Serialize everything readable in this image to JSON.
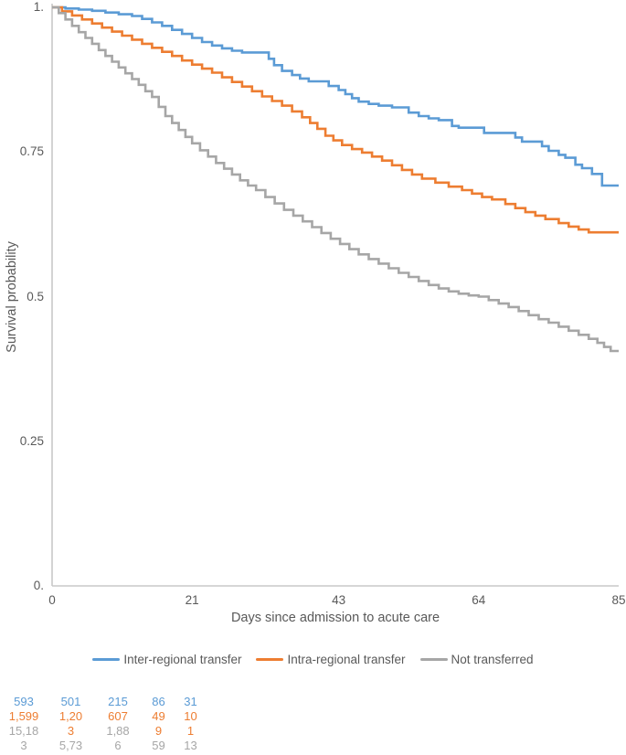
{
  "colors": {
    "blue": "#5B9BD5",
    "orange": "#ED7D31",
    "gray": "#A6A6A6",
    "axis_line": "#C8C8C8",
    "text": "#595959"
  },
  "chart_data": {
    "type": "line",
    "subtype": "kaplan-meier-step",
    "xlabel": "Days since admission to acute care",
    "ylabel": "Survival probability",
    "xlim": [
      0,
      85
    ],
    "ylim": [
      0,
      1
    ],
    "grid": false,
    "legend_position": "bottom",
    "x_ticks": [
      {
        "value": 0,
        "label": "0"
      },
      {
        "value": 21,
        "label": "21"
      },
      {
        "value": 43,
        "label": "43"
      },
      {
        "value": 64,
        "label": "64"
      },
      {
        "value": 85,
        "label": "85"
      }
    ],
    "y_ticks": [
      {
        "value": 1,
        "label": "1."
      },
      {
        "value": 0.75,
        "label": "0.75"
      },
      {
        "value": 0.5,
        "label": "0.5"
      },
      {
        "value": 0.25,
        "label": "0.25"
      },
      {
        "value": 0,
        "label": "0."
      }
    ],
    "series": [
      {
        "name": "Inter-regional transfer",
        "color_key": "blue",
        "steps": [
          [
            0,
            1.0
          ],
          [
            2,
            0.998
          ],
          [
            4,
            0.996
          ],
          [
            6,
            0.994
          ],
          [
            8,
            0.991
          ],
          [
            10,
            0.988
          ],
          [
            12,
            0.985
          ],
          [
            13.5,
            0.98
          ],
          [
            15,
            0.974
          ],
          [
            16.5,
            0.968
          ],
          [
            18,
            0.961
          ],
          [
            19.5,
            0.954
          ],
          [
            21,
            0.947
          ],
          [
            22.5,
            0.94
          ],
          [
            24,
            0.934
          ],
          [
            25.5,
            0.929
          ],
          [
            27,
            0.925
          ],
          [
            28.5,
            0.922
          ],
          [
            32.5,
            0.911
          ],
          [
            33.3,
            0.9
          ],
          [
            34.5,
            0.89
          ],
          [
            36,
            0.883
          ],
          [
            37.2,
            0.877
          ],
          [
            38.5,
            0.872
          ],
          [
            41.5,
            0.864
          ],
          [
            43,
            0.857
          ],
          [
            44,
            0.85
          ],
          [
            45,
            0.843
          ],
          [
            46,
            0.837
          ],
          [
            47.5,
            0.833
          ],
          [
            49,
            0.83
          ],
          [
            51,
            0.827
          ],
          [
            53.5,
            0.818
          ],
          [
            55,
            0.812
          ],
          [
            56.5,
            0.808
          ],
          [
            58,
            0.805
          ],
          [
            60,
            0.795
          ],
          [
            61,
            0.792
          ],
          [
            64.8,
            0.783
          ],
          [
            69.5,
            0.775
          ],
          [
            70.5,
            0.768
          ],
          [
            73.5,
            0.76
          ],
          [
            74.5,
            0.752
          ],
          [
            76,
            0.745
          ],
          [
            77,
            0.74
          ],
          [
            78.5,
            0.728
          ],
          [
            79.5,
            0.722
          ],
          [
            81,
            0.712
          ],
          [
            82.5,
            0.692
          ]
        ]
      },
      {
        "name": "Intra-regional transfer",
        "color_key": "orange",
        "steps": [
          [
            0,
            1.0
          ],
          [
            1.5,
            0.993
          ],
          [
            3,
            0.986
          ],
          [
            4.5,
            0.979
          ],
          [
            6,
            0.972
          ],
          [
            7.5,
            0.965
          ],
          [
            9,
            0.958
          ],
          [
            10.5,
            0.951
          ],
          [
            12,
            0.944
          ],
          [
            13.5,
            0.937
          ],
          [
            15,
            0.93
          ],
          [
            16.5,
            0.923
          ],
          [
            18,
            0.916
          ],
          [
            19.5,
            0.908
          ],
          [
            21,
            0.901
          ],
          [
            22.5,
            0.894
          ],
          [
            24,
            0.887
          ],
          [
            25.5,
            0.879
          ],
          [
            27,
            0.871
          ],
          [
            28.5,
            0.863
          ],
          [
            30,
            0.855
          ],
          [
            31.5,
            0.846
          ],
          [
            33,
            0.838
          ],
          [
            34.5,
            0.83
          ],
          [
            36,
            0.82
          ],
          [
            37.5,
            0.81
          ],
          [
            38.7,
            0.8
          ],
          [
            39.8,
            0.79
          ],
          [
            41,
            0.778
          ],
          [
            42.2,
            0.77
          ],
          [
            43.5,
            0.762
          ],
          [
            45,
            0.755
          ],
          [
            46.5,
            0.749
          ],
          [
            48,
            0.742
          ],
          [
            49.5,
            0.735
          ],
          [
            51,
            0.727
          ],
          [
            52.5,
            0.719
          ],
          [
            54,
            0.711
          ],
          [
            55.5,
            0.704
          ],
          [
            57.5,
            0.697
          ],
          [
            59.5,
            0.69
          ],
          [
            61.5,
            0.684
          ],
          [
            63,
            0.678
          ],
          [
            64.5,
            0.672
          ],
          [
            66,
            0.668
          ],
          [
            68,
            0.66
          ],
          [
            69.5,
            0.653
          ],
          [
            71,
            0.646
          ],
          [
            72.5,
            0.64
          ],
          [
            74,
            0.634
          ],
          [
            76,
            0.627
          ],
          [
            77.5,
            0.621
          ],
          [
            79,
            0.616
          ],
          [
            80.5,
            0.611
          ]
        ]
      },
      {
        "name": "Not transferred",
        "color_key": "gray",
        "steps": [
          [
            0,
            1.0
          ],
          [
            1,
            0.99
          ],
          [
            2,
            0.979
          ],
          [
            3,
            0.968
          ],
          [
            4,
            0.957
          ],
          [
            5,
            0.947
          ],
          [
            6,
            0.937
          ],
          [
            7,
            0.926
          ],
          [
            8,
            0.916
          ],
          [
            9,
            0.906
          ],
          [
            10,
            0.896
          ],
          [
            11,
            0.886
          ],
          [
            12,
            0.876
          ],
          [
            13,
            0.866
          ],
          [
            14,
            0.855
          ],
          [
            15,
            0.845
          ],
          [
            16,
            0.828
          ],
          [
            17,
            0.812
          ],
          [
            18,
            0.8
          ],
          [
            19,
            0.788
          ],
          [
            20,
            0.776
          ],
          [
            21,
            0.765
          ],
          [
            22.2,
            0.753
          ],
          [
            23.4,
            0.742
          ],
          [
            24.6,
            0.731
          ],
          [
            25.8,
            0.721
          ],
          [
            27,
            0.711
          ],
          [
            28.2,
            0.701
          ],
          [
            29.4,
            0.692
          ],
          [
            30.6,
            0.684
          ],
          [
            32,
            0.672
          ],
          [
            33.4,
            0.661
          ],
          [
            34.8,
            0.65
          ],
          [
            36.2,
            0.64
          ],
          [
            37.6,
            0.63
          ],
          [
            39,
            0.62
          ],
          [
            40.4,
            0.61
          ],
          [
            41.8,
            0.6
          ],
          [
            43.2,
            0.591
          ],
          [
            44.6,
            0.582
          ],
          [
            46,
            0.573
          ],
          [
            47.5,
            0.565
          ],
          [
            49,
            0.557
          ],
          [
            50.5,
            0.549
          ],
          [
            52,
            0.541
          ],
          [
            53.5,
            0.534
          ],
          [
            55,
            0.527
          ],
          [
            56.5,
            0.52
          ],
          [
            58,
            0.514
          ],
          [
            59.5,
            0.509
          ],
          [
            61,
            0.505
          ],
          [
            62.5,
            0.502
          ],
          [
            64,
            0.5
          ],
          [
            65.5,
            0.494
          ],
          [
            67,
            0.488
          ],
          [
            68.5,
            0.482
          ],
          [
            70,
            0.475
          ],
          [
            71.5,
            0.468
          ],
          [
            73,
            0.461
          ],
          [
            74.5,
            0.455
          ],
          [
            76,
            0.448
          ],
          [
            77.5,
            0.441
          ],
          [
            79,
            0.434
          ],
          [
            80.5,
            0.427
          ],
          [
            81.8,
            0.42
          ],
          [
            82.8,
            0.413
          ],
          [
            83.8,
            0.406
          ]
        ]
      }
    ],
    "risk_table": {
      "rows": [
        {
          "cells": [
            {
              "t": "593",
              "c": "blue"
            },
            {
              "t": "501",
              "c": "blue"
            },
            {
              "t": "215",
              "c": "blue"
            },
            {
              "t": "86",
              "c": "blue"
            },
            {
              "t": "31",
              "c": "blue"
            }
          ]
        },
        {
          "cells": [
            {
              "t": "1,599",
              "c": "orange"
            },
            {
              "t": "1,20",
              "c": "orange"
            },
            {
              "t": "607",
              "c": "orange"
            },
            {
              "t": "49",
              "c": "orange"
            },
            {
              "t": "10",
              "c": "orange"
            }
          ]
        },
        {
          "cells": [
            {
              "t": "15,18",
              "c": "gray"
            },
            {
              "t": "3",
              "c": "orange"
            },
            {
              "t": "1,88",
              "c": "gray"
            },
            {
              "t": "9",
              "c": "orange"
            },
            {
              "t": "1",
              "c": "orange"
            }
          ]
        },
        {
          "cells": [
            {
              "t": "3",
              "c": "gray"
            },
            {
              "t": "5,73",
              "c": "gray"
            },
            {
              "t": "6",
              "c": "gray"
            },
            {
              "t": "59",
              "c": "gray"
            },
            {
              "t": "13",
              "c": "gray"
            }
          ]
        }
      ]
    }
  }
}
